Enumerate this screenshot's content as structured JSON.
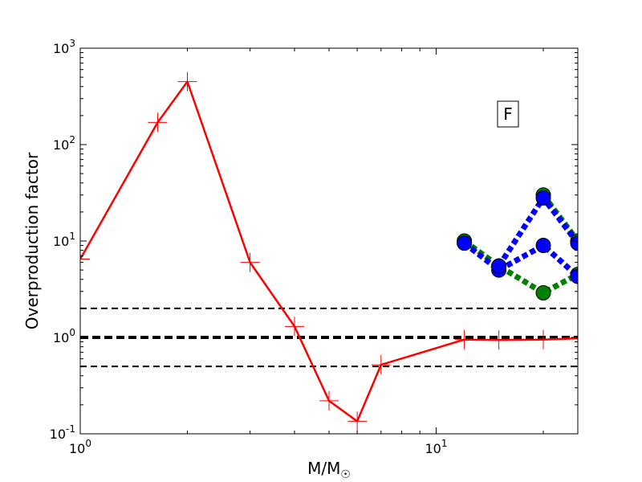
{
  "chart_data": {
    "type": "line",
    "xscale": "log",
    "yscale": "log",
    "xlim": [
      1,
      25
    ],
    "ylim": [
      0.1,
      1000
    ],
    "xlabel": "M/M",
    "xlabel_sub": "☉",
    "ylabel": "Overproduction factor",
    "x_ticks": [
      {
        "value": 1,
        "base": "10",
        "exp": "0"
      },
      {
        "value": 10,
        "base": "10",
        "exp": "1"
      }
    ],
    "y_ticks": [
      {
        "value": 0.1,
        "base": "10",
        "exp": "-1"
      },
      {
        "value": 1,
        "base": "10",
        "exp": "0"
      },
      {
        "value": 10,
        "base": "10",
        "exp": "1"
      },
      {
        "value": 100,
        "base": "10",
        "exp": "2"
      },
      {
        "value": 1000,
        "base": "10",
        "exp": "3"
      }
    ],
    "annotation": "F",
    "hlines": [
      {
        "y": 2.0,
        "style": "dashed",
        "weight": "thin"
      },
      {
        "y": 1.0,
        "style": "dashed",
        "weight": "thick"
      },
      {
        "y": 0.5,
        "style": "dashed",
        "weight": "thin"
      }
    ],
    "series": [
      {
        "color": "#ff0000",
        "style": "solid",
        "marker": "plus",
        "x": [
          1.0,
          1.65,
          2.0,
          3.0,
          4.0,
          5.0,
          6.0,
          7.0,
          12.0,
          15.0,
          20.0,
          25.0
        ],
        "y": [
          6.5,
          170,
          450,
          6.0,
          1.3,
          0.22,
          0.135,
          0.52,
          0.95,
          0.94,
          0.95,
          0.98
        ]
      },
      {
        "color": "#008000",
        "style": "dotted",
        "marker": "circle",
        "x": [
          12.0,
          15.0,
          20.0,
          25.0
        ],
        "y": [
          10.0,
          5.5,
          2.9,
          4.5
        ]
      },
      {
        "color": "#008000",
        "style": "dotted",
        "marker": "circle",
        "x": [
          20.0,
          25.0
        ],
        "y": [
          30.0,
          10.0
        ]
      },
      {
        "color": "#0000ff",
        "style": "dotted",
        "marker": "circle",
        "x": [
          12.0,
          15.0,
          20.0,
          25.0
        ],
        "y": [
          9.5,
          5.0,
          9.0,
          4.3
        ]
      },
      {
        "color": "#0000ff",
        "style": "dotted",
        "marker": "circle",
        "x": [
          15.0,
          20.0,
          25.0
        ],
        "y": [
          5.5,
          28.0,
          9.5
        ]
      }
    ]
  }
}
